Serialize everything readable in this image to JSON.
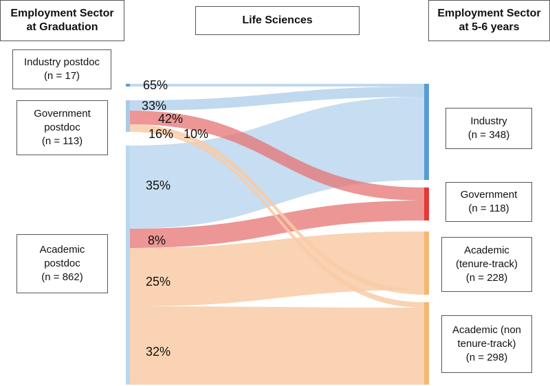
{
  "header": {
    "left_title_line1": "Employment Sector",
    "left_title_line2": "at Graduation",
    "center_title": "Life Sciences",
    "right_title_line1": "Employment Sector",
    "right_title_line2": "at 5-6 years"
  },
  "sources": [
    {
      "line1": "Industry postdoc",
      "line2": "",
      "line3": "(n = 17)"
    },
    {
      "line1": "Government",
      "line2": "postdoc",
      "line3": "(n = 113)"
    },
    {
      "line1": "Academic",
      "line2": "postdoc",
      "line3": "(n = 862)"
    }
  ],
  "targets": [
    {
      "line1": "Industry",
      "line2": "",
      "line3": "(n = 348)"
    },
    {
      "line1": "Government",
      "line2": "",
      "line3": "(n = 118)"
    },
    {
      "line1": "Academic",
      "line2": "(tenure-track)",
      "line3": "(n = 228)"
    },
    {
      "line1": "Academic (non",
      "line2": "tenure-track)",
      "line3": "(n = 298)"
    }
  ],
  "flow_labels": {
    "industry_to_industry": "65%",
    "gov_to_industry": "33%",
    "gov_to_gov": "42%",
    "gov_to_tenure": "16%",
    "gov_to_nontenure": "10%",
    "acad_to_industry": "35%",
    "acad_to_gov": "8%",
    "acad_to_tenure": "25%",
    "acad_to_nontenure": "32%"
  },
  "colors": {
    "industry": "#5b9bd5",
    "industry_flow": "#bdd7ee",
    "government": "#e53935",
    "government_flow": "#e57373",
    "academic": "#f4b870",
    "academic_flow": "#f8cba6"
  }
}
